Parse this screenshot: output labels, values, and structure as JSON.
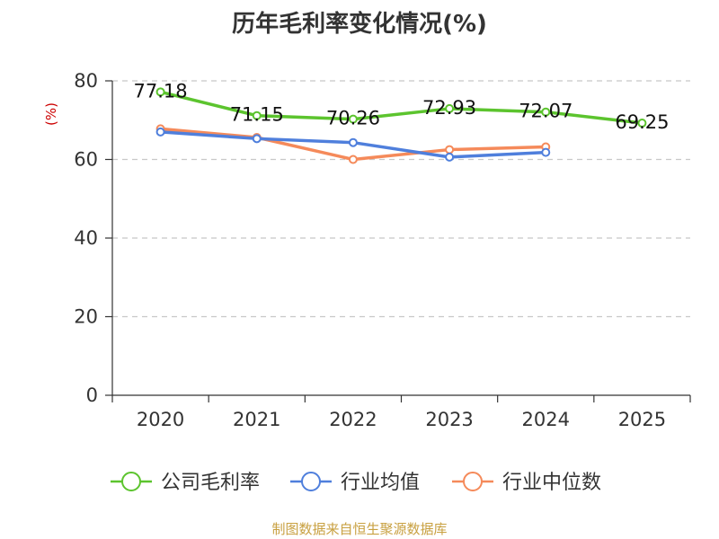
{
  "chart_data": {
    "type": "line",
    "title": "历年毛利率变化情况(%)",
    "unit": "(%)",
    "categories": [
      "2020",
      "2021",
      "2022",
      "2023",
      "2024",
      "2025"
    ],
    "ylim": [
      0,
      80
    ],
    "yticks": [
      0,
      20,
      40,
      60,
      80
    ],
    "grid": true,
    "legend_position": "bottom",
    "series": [
      {
        "name": "公司毛利率",
        "color": "#5cc42e",
        "values": [
          77.18,
          71.15,
          70.26,
          72.93,
          72.07,
          69.25
        ],
        "show_labels": true
      },
      {
        "name": "行业均值",
        "color": "#4f7fdc",
        "values": [
          67.0,
          65.3,
          64.3,
          60.6,
          61.8,
          null
        ],
        "show_labels": false
      },
      {
        "name": "行业中位数",
        "color": "#f58a5a",
        "values": [
          67.8,
          65.6,
          60.0,
          62.5,
          63.2,
          null
        ],
        "show_labels": false
      }
    ],
    "source": "制图数据来自恒生聚源数据库"
  }
}
